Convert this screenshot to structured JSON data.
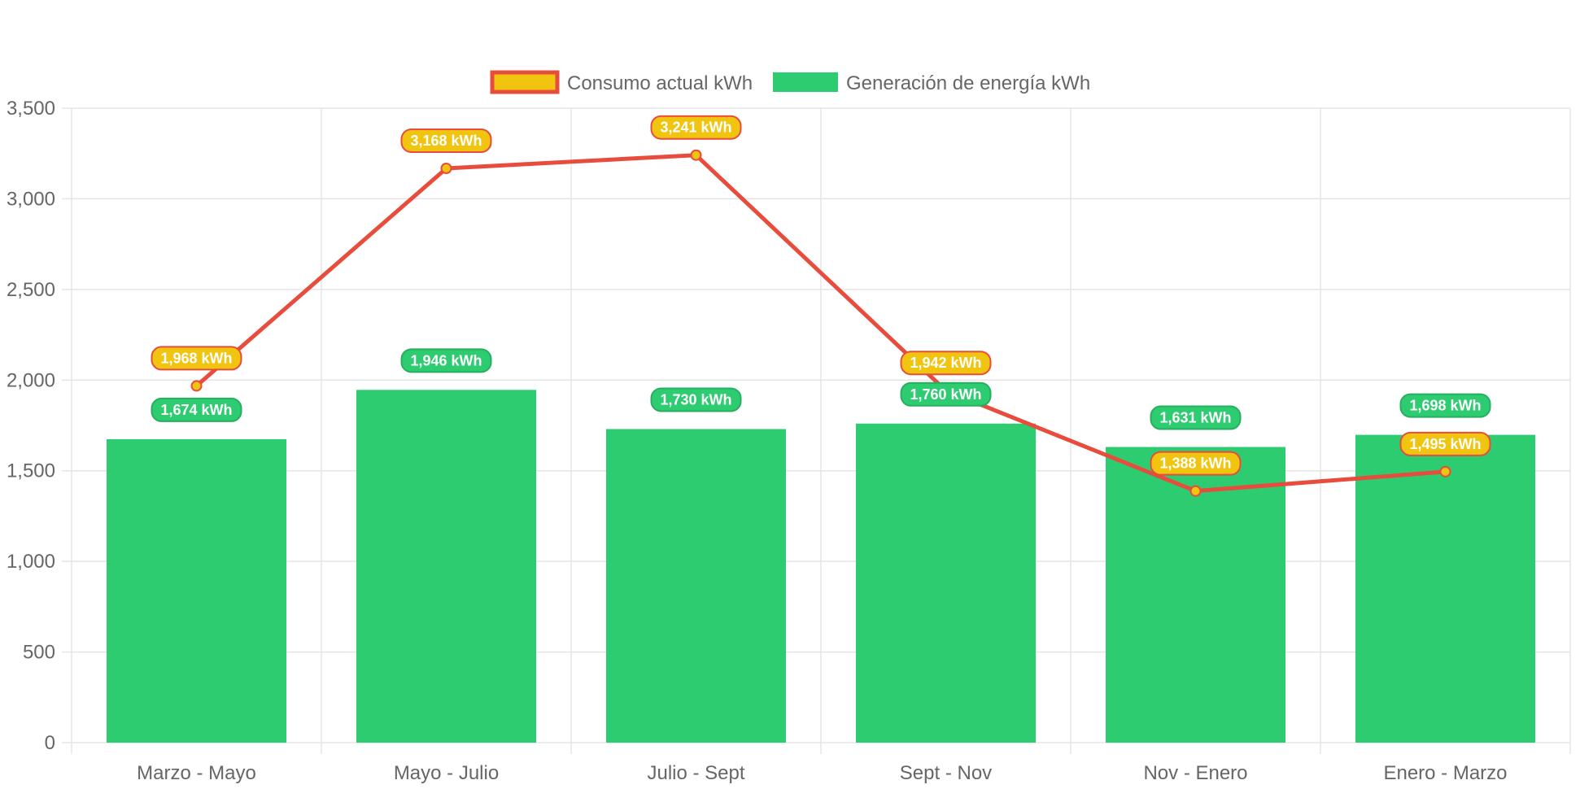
{
  "chart_data": {
    "type": "bar",
    "categories": [
      "Marzo - Mayo",
      "Mayo - Julio",
      "Julio - Sept",
      "Sept - Nov",
      "Nov - Enero",
      "Enero - Marzo"
    ],
    "series": [
      {
        "name": "Consumo actual kWh",
        "type": "line",
        "values": [
          1968,
          3168,
          3241,
          1942,
          1388,
          1495
        ],
        "labels": [
          "1,968 kWh",
          "3,168 kWh",
          "3,241 kWh",
          "1,942 kWh",
          "1,388 kWh",
          "1,495 kWh"
        ],
        "color": "#e74c3c",
        "fill_color": "#f1c40f"
      },
      {
        "name": "Generación de energía kWh",
        "type": "bar",
        "values": [
          1674,
          1946,
          1730,
          1760,
          1631,
          1698
        ],
        "labels": [
          "1,674 kWh",
          "1,946 kWh",
          "1,730 kWh",
          "1,760 kWh",
          "1,631 kWh",
          "1,698 kWh"
        ],
        "color": "#2ecc71",
        "label_border": "#27ae60"
      }
    ],
    "ylim": [
      0,
      3500
    ],
    "yticks": [
      "0",
      "500",
      "1,000",
      "1,500",
      "2,000",
      "2,500",
      "3,000",
      "3,500"
    ],
    "ytick_values": [
      0,
      500,
      1000,
      1500,
      2000,
      2500,
      3000,
      3500
    ],
    "grid": true,
    "legend_position": "top",
    "grid_color": "#e5e5e5",
    "axis_text_color": "#666666"
  }
}
